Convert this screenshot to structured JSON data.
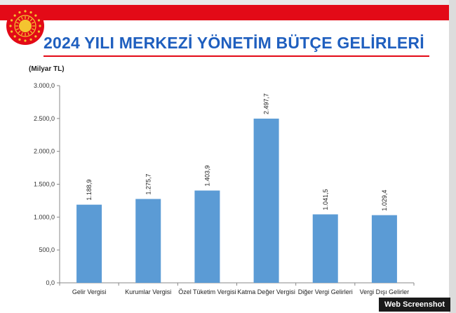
{
  "header": {
    "title": "2024 YILI MERKEZİ YÖNETİM BÜTÇE GELİRLERİ",
    "seal_icon": "presidential-seal-icon"
  },
  "colors": {
    "accent_red": "#e30a17",
    "title_blue": "#1f5fbf",
    "bar_blue": "#5b9bd5"
  },
  "chart_data": {
    "type": "bar",
    "title": "2024 YILI MERKEZİ YÖNETİM BÜTÇE GELİRLERİ",
    "unit_label": "(Milyar TL)",
    "xlabel": "",
    "ylabel": "",
    "categories": [
      "Gelir Vergisi",
      "Kurumlar Vergisi",
      "Özel Tüketim Vergisi",
      "Katma Değer Vergisi",
      "Diğer Vergi Gelirleri",
      "Vergi Dışı Gelirler"
    ],
    "values": [
      1188.9,
      1275.7,
      1403.9,
      2497.7,
      1041.5,
      1029.4
    ],
    "data_labels": [
      "1.188,9",
      "1.275,7",
      "1.403,9",
      "2.497,7",
      "1.041,5",
      "1.029,4"
    ],
    "ylim": [
      0,
      3000
    ],
    "yticks": [
      0,
      500,
      1000,
      1500,
      2000,
      2500,
      3000
    ],
    "ytick_labels": [
      "0,0",
      "500,0",
      "1.000,0",
      "1.500,0",
      "2.000,0",
      "2.500,0",
      "3.000,0"
    ],
    "grid": false,
    "legend": "none"
  },
  "watermark": "Web Screenshot"
}
